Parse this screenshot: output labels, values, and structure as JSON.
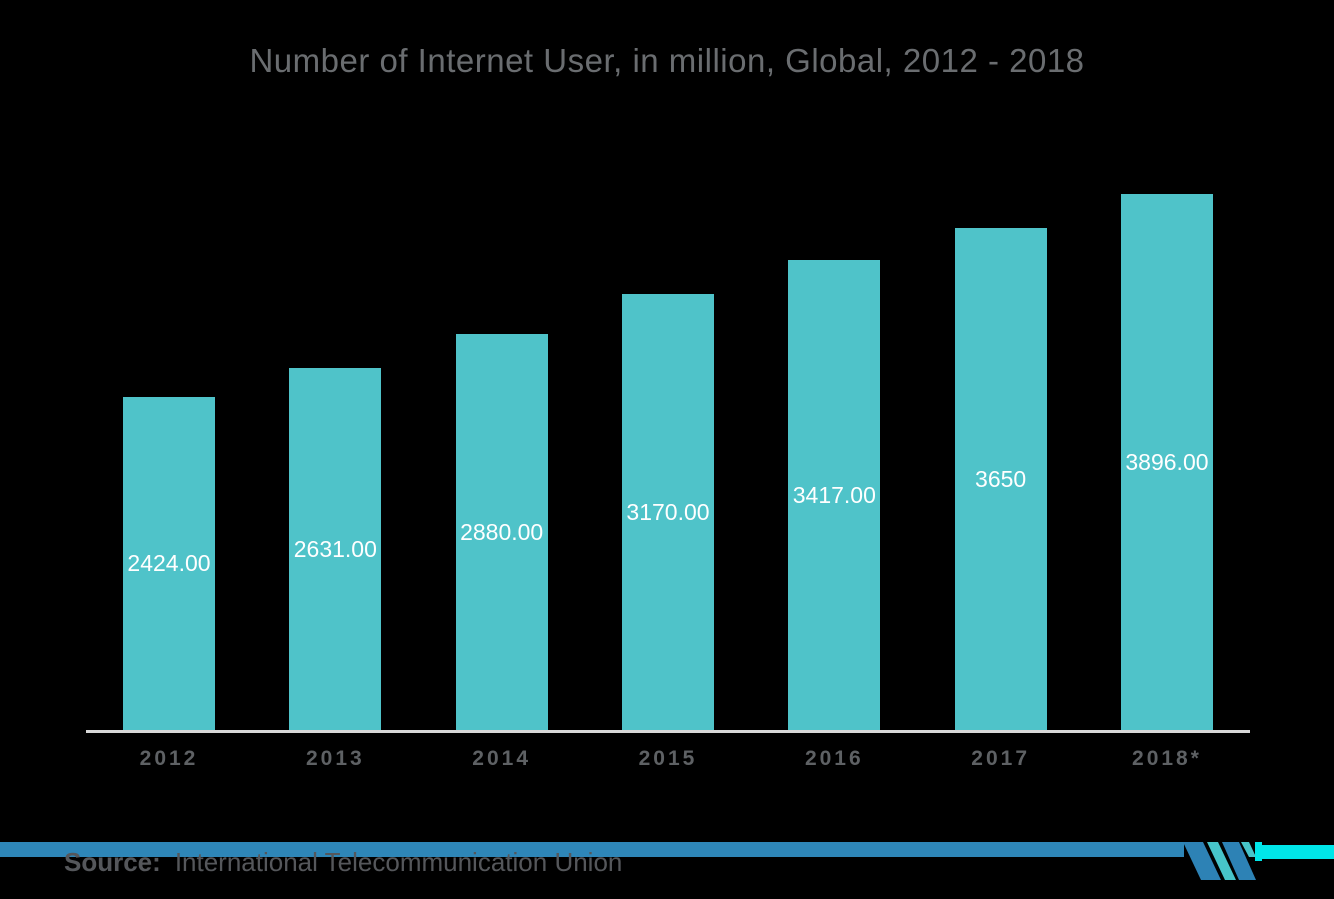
{
  "chart_data": {
    "type": "bar",
    "title": "Number of Internet User, in million, Global, 2012 - 2018",
    "categories": [
      "2012",
      "2013",
      "2014",
      "2015",
      "2016",
      "2017",
      "2018*"
    ],
    "values": [
      2424,
      2631,
      2880,
      3170,
      3417,
      3650,
      3896
    ],
    "value_labels": [
      "2424.00",
      "2631.00",
      "2880.00",
      "3170.00",
      "3417.00",
      "3650",
      "3896.00"
    ],
    "xlabel": "",
    "ylabel": "",
    "ylim": [
      0,
      4000
    ],
    "grid": false,
    "legend": false,
    "value_label_position": "inside-middle"
  },
  "source": {
    "label": "Source:",
    "text": "International Telecommunication Union"
  },
  "icons": {
    "brand_logo": "mordor-intelligence-logo"
  },
  "colors": {
    "background": "#000000",
    "bar": "#4FC3C9",
    "title": "#6A6D70",
    "axis_label": "#5E6164",
    "axis_line": "#D8D8D8",
    "value_label": "#FFFFFF",
    "stripe_blue": "#2E86B8",
    "stripe_cyan": "#00E6E9",
    "logo_blue": "#2D82B5",
    "logo_teal": "#47C4C9"
  }
}
